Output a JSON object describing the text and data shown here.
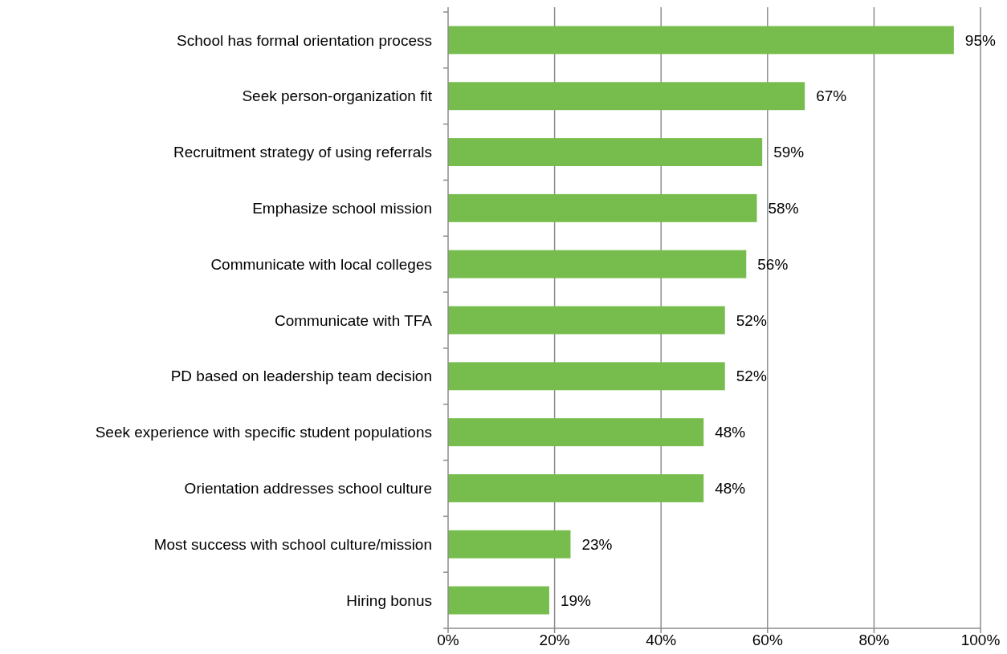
{
  "chart_data": {
    "type": "bar",
    "orientation": "horizontal",
    "categories": [
      "School has formal orientation process",
      "Seek person-organization fit",
      "Recruitment strategy of using referrals",
      "Emphasize school mission",
      "Communicate with local colleges",
      "Communicate with TFA",
      "PD based on leadership team decision",
      "Seek experience with specific student populations",
      "Orientation addresses school culture",
      "Most success with school culture/mission",
      "Hiring bonus"
    ],
    "values": [
      95,
      67,
      59,
      58,
      56,
      52,
      52,
      48,
      48,
      23,
      19
    ],
    "value_labels": [
      "95%",
      "67%",
      "59%",
      "58%",
      "56%",
      "52%",
      "52%",
      "48%",
      "48%",
      "23%",
      "19%"
    ],
    "color": "#77bd4e",
    "xlim": [
      0,
      100
    ],
    "xticks": [
      {
        "value": 0,
        "label": "0%"
      },
      {
        "value": 20,
        "label": "20%"
      },
      {
        "value": 40,
        "label": "40%"
      },
      {
        "value": 60,
        "label": "60%"
      },
      {
        "value": 80,
        "label": "80%"
      },
      {
        "value": 100,
        "label": "100%"
      }
    ],
    "grid": "x"
  }
}
